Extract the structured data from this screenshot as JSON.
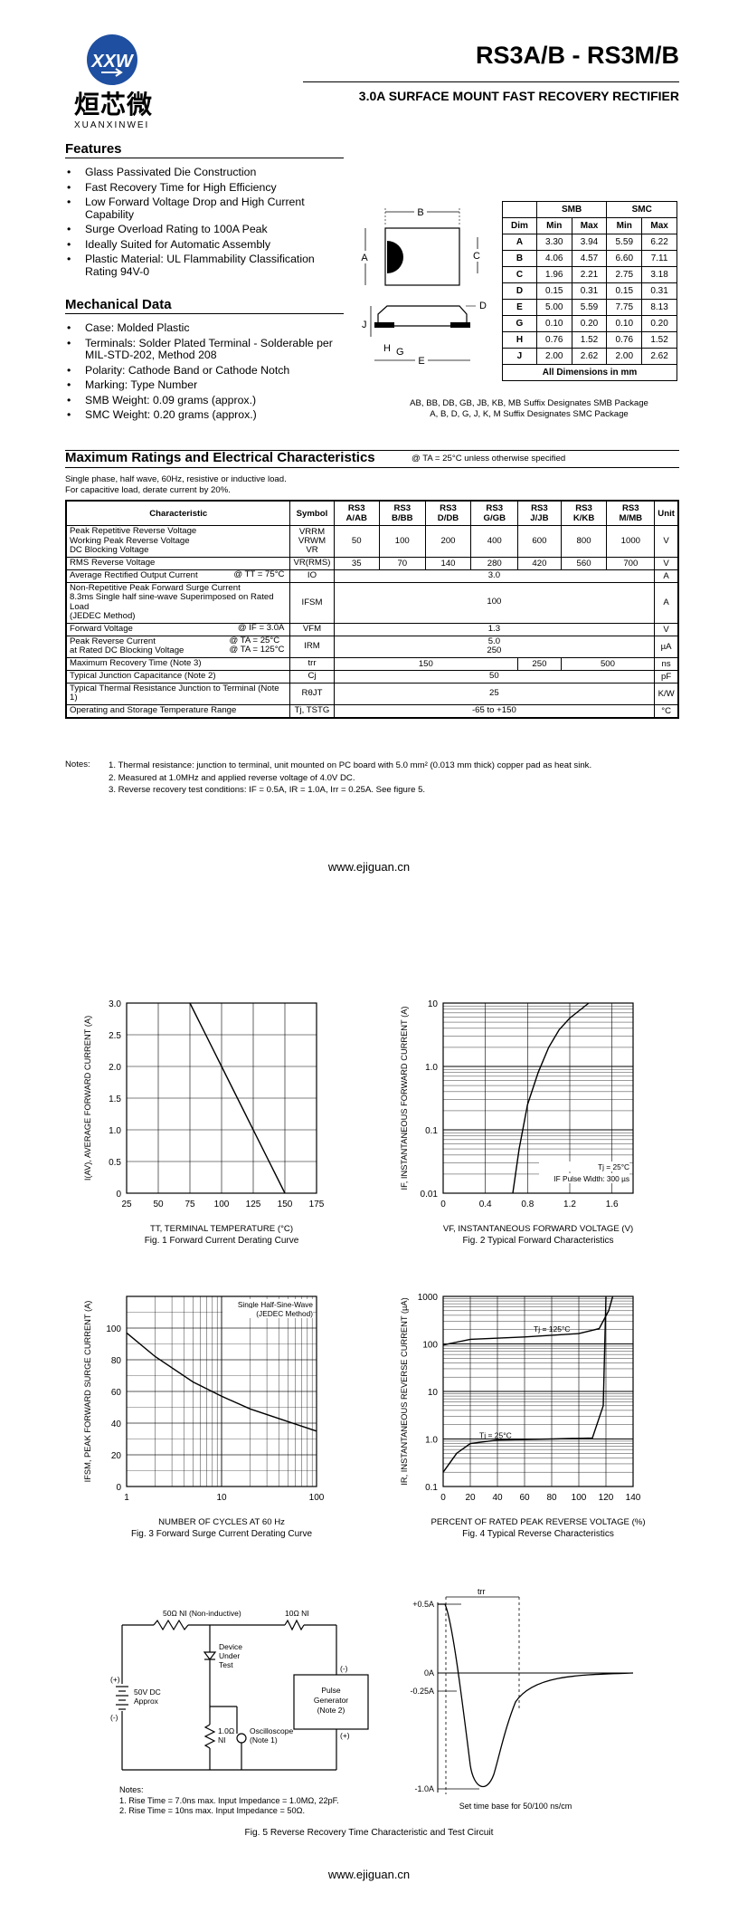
{
  "header": {
    "logo_text": "XXW",
    "logo_chinese": "烜芯微",
    "logo_pinyin": "XUANXINWEI",
    "part_number": "RS3A/B - RS3M/B",
    "subtitle": "3.0A SURFACE MOUNT FAST RECOVERY RECTIFIER"
  },
  "features": {
    "heading": "Features",
    "items": [
      "Glass Passivated Die Construction",
      "Fast Recovery Time for High Efficiency",
      "Low Forward Voltage Drop and High Current Capability",
      "Surge Overload Rating to 100A Peak",
      "Ideally Suited for Automatic Assembly",
      "Plastic Material: UL Flammability Classification Rating 94V-0"
    ]
  },
  "mechanical": {
    "heading": "Mechanical Data",
    "items": [
      "Case: Molded Plastic",
      "Terminals: Solder Plated Terminal - Solderable per MIL-STD-202, Method 208",
      "Polarity: Cathode Band or Cathode Notch",
      "Marking: Type Number",
      "SMB Weight: 0.09 grams (approx.)",
      "SMC Weight: 0.20 grams (approx.)"
    ]
  },
  "package_labels": {
    "A": "A",
    "B": "B",
    "C": "C",
    "D": "D",
    "E": "E",
    "G": "G",
    "H": "H",
    "J": "J"
  },
  "dim_table": {
    "group_smb": "SMB",
    "group_smc": "SMC",
    "headers": [
      "Dim",
      "Min",
      "Max",
      "Min",
      "Max"
    ],
    "rows": [
      [
        "A",
        "3.30",
        "3.94",
        "5.59",
        "6.22"
      ],
      [
        "B",
        "4.06",
        "4.57",
        "6.60",
        "7.11"
      ],
      [
        "C",
        "1.96",
        "2.21",
        "2.75",
        "3.18"
      ],
      [
        "D",
        "0.15",
        "0.31",
        "0.15",
        "0.31"
      ],
      [
        "E",
        "5.00",
        "5.59",
        "7.75",
        "8.13"
      ],
      [
        "G",
        "0.10",
        "0.20",
        "0.10",
        "0.20"
      ],
      [
        "H",
        "0.76",
        "1.52",
        "0.76",
        "1.52"
      ],
      [
        "J",
        "2.00",
        "2.62",
        "2.00",
        "2.62"
      ]
    ],
    "footer": "All Dimensions in mm"
  },
  "suffix_note": [
    "AB, BB, DB, GB, JB, KB, MB Suffix Designates SMB Package",
    "A, B, D, G, J, K, M Suffix Designates SMC Package"
  ],
  "ratings": {
    "heading": "Maximum Ratings and Electrical Characteristics",
    "condition": "@ TA = 25°C unless otherwise specified",
    "notes_intro": [
      "Single phase, half wave, 60Hz, resistive or inductive load.",
      "For capacitive load, derate current by 20%."
    ],
    "headers": [
      "Characteristic",
      "Symbol",
      "RS3 A/AB",
      "RS3 B/BB",
      "RS3 D/DB",
      "RS3 G/GB",
      "RS3 J/JB",
      "RS3 K/KB",
      "RS3 M/MB",
      "Unit"
    ],
    "rows": [
      {
        "char": "Peak Repetitive Reverse Voltage\nWorking Peak Reverse Voltage\nDC Blocking Voltage",
        "cond": "",
        "sym": "VRRM\nVRWM\nVR",
        "vals": [
          "50",
          "100",
          "200",
          "400",
          "600",
          "800",
          "1000"
        ],
        "unit": "V"
      },
      {
        "char": "RMS Reverse Voltage",
        "cond": "",
        "sym": "VR(RMS)",
        "vals": [
          "35",
          "70",
          "140",
          "280",
          "420",
          "560",
          "700"
        ],
        "unit": "V"
      },
      {
        "char": "Average Rectified Output Current",
        "cond": "@ TT = 75°C",
        "sym": "IO",
        "span": "3.0",
        "unit": "A"
      },
      {
        "char": "Non-Repetitive Peak Forward Surge Current\n8.3ms Single half sine-wave Superimposed on Rated Load\n(JEDEC Method)",
        "cond": "",
        "sym": "IFSM",
        "span": "100",
        "unit": "A"
      },
      {
        "char": "Forward Voltage",
        "cond": "@ IF = 3.0A",
        "sym": "VFM",
        "span": "1.3",
        "unit": "V"
      },
      {
        "char": "Peak Reverse Current\nat Rated DC Blocking Voltage",
        "cond": "@ TA =  25°C\n@ TA = 125°C",
        "sym": "IRM",
        "span": "5.0\n250",
        "unit": "µA"
      },
      {
        "char": "Maximum Recovery Time (Note 3)",
        "cond": "",
        "sym": "trr",
        "trr": [
          "150",
          "250",
          "500"
        ],
        "unit": "ns"
      },
      {
        "char": "Typical Junction Capacitance (Note 2)",
        "cond": "",
        "sym": "Cj",
        "span": "50",
        "unit": "pF"
      },
      {
        "char": "Typical Thermal Resistance Junction to Terminal (Note 1)",
        "cond": "",
        "sym": "RθJT",
        "span": "25",
        "unit": "K/W"
      },
      {
        "char": "Operating and Storage Temperature Range",
        "cond": "",
        "sym": "Tj, TSTG",
        "span": "-65 to +150",
        "unit": "°C"
      }
    ]
  },
  "notes": {
    "label": "Notes:",
    "items": [
      "1.   Thermal resistance: junction to terminal, unit mounted on PC board with 5.0 mm² (0.013 mm thick) copper pad as heat sink.",
      "2.   Measured at 1.0MHz and applied reverse voltage of 4.0V DC.",
      "3.   Reverse recovery test conditions: IF = 0.5A, IR = 1.0A, Irr = 0.25A. See figure 5."
    ]
  },
  "website": "www.ejiguan.cn",
  "chart_data": [
    {
      "type": "line",
      "title": "Fig. 1  Forward Current Derating Curve",
      "xlabel": "TT, TERMINAL TEMPERATURE (°C)",
      "ylabel": "I(AV), AVERAGE FORWARD CURRENT (A)",
      "xticks": [
        "25",
        "50",
        "75",
        "100",
        "125",
        "150",
        "175"
      ],
      "yticks": [
        "0",
        "0.5",
        "1.0",
        "1.5",
        "2.0",
        "2.5",
        "3.0"
      ],
      "xlim": [
        25,
        175
      ],
      "ylim": [
        0,
        3.0
      ],
      "x": [
        75,
        150
      ],
      "y": [
        3.0,
        0
      ]
    },
    {
      "type": "line",
      "title": "Fig. 2  Typical Forward Characteristics",
      "xlabel": "VF, INSTANTANEOUS FORWARD VOLTAGE (V)",
      "ylabel": "IF, INSTANTANEOUS FORWARD CURRENT (A)",
      "xticks": [
        "0",
        "0.4",
        "0.8",
        "1.2",
        "1.6"
      ],
      "yticks": [
        "0.01",
        "0.1",
        "1.0",
        "10"
      ],
      "xlim": [
        0,
        1.8
      ],
      "ylim": [
        0.01,
        10
      ],
      "yscale": "log",
      "annotations": [
        "Tj = 25°C",
        "IF Pulse Width: 300 µs"
      ],
      "x": [
        0.66,
        0.72,
        0.8,
        0.9,
        1.0,
        1.1,
        1.2,
        1.38
      ],
      "y": [
        0.01,
        0.05,
        0.25,
        0.8,
        2.0,
        3.8,
        5.8,
        10
      ]
    },
    {
      "type": "line",
      "title": "Fig. 3  Forward Surge Current Derating Curve",
      "xlabel": "NUMBER OF CYCLES AT 60 Hz",
      "ylabel": "IFSM, PEAK FORWARD SURGE CURRENT (A)",
      "xticks": [
        "1",
        "10",
        "100"
      ],
      "yticks": [
        "0",
        "20",
        "40",
        "60",
        "80",
        "100"
      ],
      "xlim": [
        1,
        100
      ],
      "ylim": [
        0,
        120
      ],
      "xscale": "log",
      "annotations": [
        "Single Half-Sine-Wave",
        "(JEDEC Method)"
      ],
      "x": [
        1,
        2,
        5,
        10,
        20,
        50,
        100
      ],
      "y": [
        97,
        82,
        66,
        57,
        49,
        41,
        35
      ]
    },
    {
      "type": "line",
      "title": "Fig. 4  Typical Reverse Characteristics",
      "xlabel": "PERCENT OF RATED PEAK REVERSE VOLTAGE (%)",
      "ylabel": "IR, INSTANTANEOUS REVERSE CURRENT (µA)",
      "xticks": [
        "0",
        "20",
        "40",
        "60",
        "80",
        "100",
        "120",
        "140"
      ],
      "yticks": [
        "0.1",
        "1.0",
        "10",
        "100",
        "1000"
      ],
      "xlim": [
        0,
        140
      ],
      "ylim": [
        0.1,
        1000
      ],
      "yscale": "log",
      "series": [
        {
          "name": "Tj = 125°C",
          "x": [
            0,
            20,
            60,
            100,
            115,
            122,
            125
          ],
          "y": [
            95,
            125,
            140,
            165,
            210,
            500,
            1000
          ]
        },
        {
          "name": "Tj = 25°C",
          "x": [
            0,
            10,
            20,
            40,
            80,
            110,
            118,
            120
          ],
          "y": [
            0.2,
            0.5,
            0.8,
            0.95,
            1.0,
            1.05,
            5,
            1000
          ]
        }
      ]
    }
  ],
  "fig5": {
    "labels": {
      "r50": "50Ω NI (Non-inductive)",
      "r10": "10Ω NI",
      "dut1": "Device",
      "dut2": "Under",
      "dut3": "Test",
      "src1": "50V DC",
      "src2": "Approx",
      "plus": "(+)",
      "minus": "(-)",
      "r1a": "1.0Ω",
      "r1b": "NI",
      "osc1": "Oscilloscope",
      "osc2": "(Note 1)",
      "gen1": "Pulse",
      "gen2": "Generator",
      "gen3": "(Note 2)",
      "trr": "trr",
      "yt": [
        "+0.5A",
        "0A",
        "-0.25A",
        "-1.0A"
      ],
      "timebase": "Set time base for 50/100 ns/cm"
    },
    "notes": [
      "Notes:",
      "1. Rise Time = 7.0ns max. Input Impedance = 1.0MΩ, 22pF.",
      "2. Rise Time = 10ns max. Input Impedance = 50Ω."
    ],
    "caption": "Fig. 5  Reverse Recovery Time Characteristic and Test Circuit"
  },
  "colors": {
    "logo_blue": "#1e4fa0",
    "text": "#000000"
  }
}
